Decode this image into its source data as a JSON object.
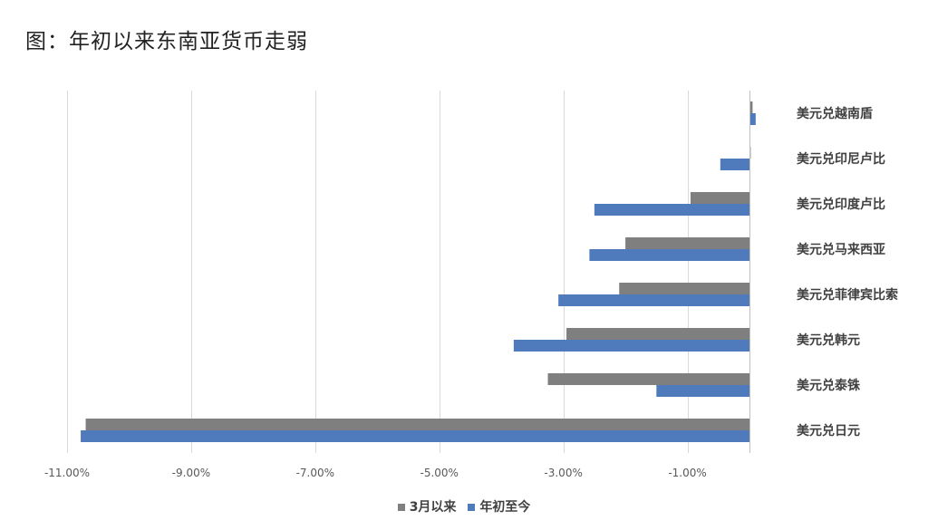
{
  "title": "图：年初以来东南亚货币走弱",
  "chart_data": {
    "type": "bar",
    "orientation": "horizontal",
    "categories": [
      "美元兑越南盾",
      "美元兑印尼卢比",
      "美元兑印度卢比",
      "美元兑马来西亚",
      "美元兑菲律宾比索",
      "美元兑韩元",
      "美元兑泰铢",
      "美元兑日元"
    ],
    "series": [
      {
        "name": "3月以来",
        "color": "#7f7f7f",
        "values": [
          0.05,
          0.02,
          -0.95,
          -2.0,
          -2.1,
          -2.95,
          -3.25,
          -10.7
        ]
      },
      {
        "name": "年初至今",
        "color": "#4f7bbd",
        "values": [
          0.1,
          -0.47,
          -2.5,
          -2.58,
          -3.08,
          -3.8,
          -1.5,
          -10.78
        ]
      }
    ],
    "xlim": [
      -11,
      0
    ],
    "xticks": [
      -11,
      -9,
      -7,
      -5,
      -3,
      -1
    ],
    "tick_labels": [
      "-11.00%",
      "-9.00%",
      "-7.00%",
      "-5.00%",
      "-3.00%",
      "-1.00%"
    ],
    "grid": true,
    "legend_position": "bottom"
  }
}
